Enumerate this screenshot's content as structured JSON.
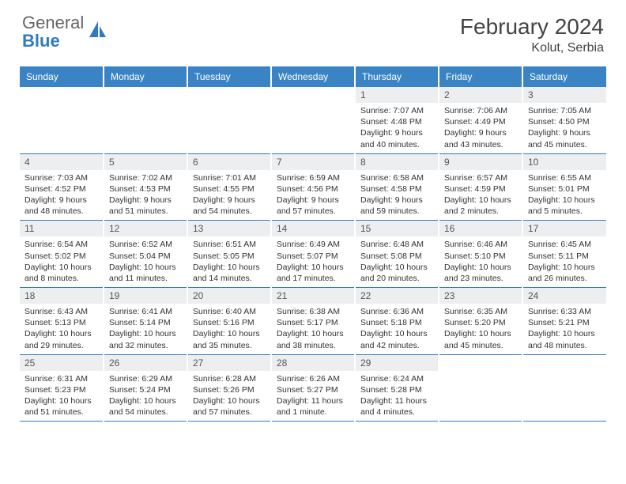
{
  "logo": {
    "text1": "General",
    "text2": "Blue",
    "icon_color": "#2f7bbf"
  },
  "title": "February 2024",
  "location": "Kolut, Serbia",
  "header_bg": "#3a84c5",
  "daynum_bg": "#eceef0",
  "border_color": "#2f7bbf",
  "weekdays": [
    "Sunday",
    "Monday",
    "Tuesday",
    "Wednesday",
    "Thursday",
    "Friday",
    "Saturday"
  ],
  "weeks": [
    [
      null,
      null,
      null,
      null,
      {
        "n": "1",
        "sunrise": "7:07 AM",
        "sunset": "4:48 PM",
        "dl1": "Daylight: 9 hours",
        "dl2": "and 40 minutes."
      },
      {
        "n": "2",
        "sunrise": "7:06 AM",
        "sunset": "4:49 PM",
        "dl1": "Daylight: 9 hours",
        "dl2": "and 43 minutes."
      },
      {
        "n": "3",
        "sunrise": "7:05 AM",
        "sunset": "4:50 PM",
        "dl1": "Daylight: 9 hours",
        "dl2": "and 45 minutes."
      }
    ],
    [
      {
        "n": "4",
        "sunrise": "7:03 AM",
        "sunset": "4:52 PM",
        "dl1": "Daylight: 9 hours",
        "dl2": "and 48 minutes."
      },
      {
        "n": "5",
        "sunrise": "7:02 AM",
        "sunset": "4:53 PM",
        "dl1": "Daylight: 9 hours",
        "dl2": "and 51 minutes."
      },
      {
        "n": "6",
        "sunrise": "7:01 AM",
        "sunset": "4:55 PM",
        "dl1": "Daylight: 9 hours",
        "dl2": "and 54 minutes."
      },
      {
        "n": "7",
        "sunrise": "6:59 AM",
        "sunset": "4:56 PM",
        "dl1": "Daylight: 9 hours",
        "dl2": "and 57 minutes."
      },
      {
        "n": "8",
        "sunrise": "6:58 AM",
        "sunset": "4:58 PM",
        "dl1": "Daylight: 9 hours",
        "dl2": "and 59 minutes."
      },
      {
        "n": "9",
        "sunrise": "6:57 AM",
        "sunset": "4:59 PM",
        "dl1": "Daylight: 10 hours",
        "dl2": "and 2 minutes."
      },
      {
        "n": "10",
        "sunrise": "6:55 AM",
        "sunset": "5:01 PM",
        "dl1": "Daylight: 10 hours",
        "dl2": "and 5 minutes."
      }
    ],
    [
      {
        "n": "11",
        "sunrise": "6:54 AM",
        "sunset": "5:02 PM",
        "dl1": "Daylight: 10 hours",
        "dl2": "and 8 minutes."
      },
      {
        "n": "12",
        "sunrise": "6:52 AM",
        "sunset": "5:04 PM",
        "dl1": "Daylight: 10 hours",
        "dl2": "and 11 minutes."
      },
      {
        "n": "13",
        "sunrise": "6:51 AM",
        "sunset": "5:05 PM",
        "dl1": "Daylight: 10 hours",
        "dl2": "and 14 minutes."
      },
      {
        "n": "14",
        "sunrise": "6:49 AM",
        "sunset": "5:07 PM",
        "dl1": "Daylight: 10 hours",
        "dl2": "and 17 minutes."
      },
      {
        "n": "15",
        "sunrise": "6:48 AM",
        "sunset": "5:08 PM",
        "dl1": "Daylight: 10 hours",
        "dl2": "and 20 minutes."
      },
      {
        "n": "16",
        "sunrise": "6:46 AM",
        "sunset": "5:10 PM",
        "dl1": "Daylight: 10 hours",
        "dl2": "and 23 minutes."
      },
      {
        "n": "17",
        "sunrise": "6:45 AM",
        "sunset": "5:11 PM",
        "dl1": "Daylight: 10 hours",
        "dl2": "and 26 minutes."
      }
    ],
    [
      {
        "n": "18",
        "sunrise": "6:43 AM",
        "sunset": "5:13 PM",
        "dl1": "Daylight: 10 hours",
        "dl2": "and 29 minutes."
      },
      {
        "n": "19",
        "sunrise": "6:41 AM",
        "sunset": "5:14 PM",
        "dl1": "Daylight: 10 hours",
        "dl2": "and 32 minutes."
      },
      {
        "n": "20",
        "sunrise": "6:40 AM",
        "sunset": "5:16 PM",
        "dl1": "Daylight: 10 hours",
        "dl2": "and 35 minutes."
      },
      {
        "n": "21",
        "sunrise": "6:38 AM",
        "sunset": "5:17 PM",
        "dl1": "Daylight: 10 hours",
        "dl2": "and 38 minutes."
      },
      {
        "n": "22",
        "sunrise": "6:36 AM",
        "sunset": "5:18 PM",
        "dl1": "Daylight: 10 hours",
        "dl2": "and 42 minutes."
      },
      {
        "n": "23",
        "sunrise": "6:35 AM",
        "sunset": "5:20 PM",
        "dl1": "Daylight: 10 hours",
        "dl2": "and 45 minutes."
      },
      {
        "n": "24",
        "sunrise": "6:33 AM",
        "sunset": "5:21 PM",
        "dl1": "Daylight: 10 hours",
        "dl2": "and 48 minutes."
      }
    ],
    [
      {
        "n": "25",
        "sunrise": "6:31 AM",
        "sunset": "5:23 PM",
        "dl1": "Daylight: 10 hours",
        "dl2": "and 51 minutes."
      },
      {
        "n": "26",
        "sunrise": "6:29 AM",
        "sunset": "5:24 PM",
        "dl1": "Daylight: 10 hours",
        "dl2": "and 54 minutes."
      },
      {
        "n": "27",
        "sunrise": "6:28 AM",
        "sunset": "5:26 PM",
        "dl1": "Daylight: 10 hours",
        "dl2": "and 57 minutes."
      },
      {
        "n": "28",
        "sunrise": "6:26 AM",
        "sunset": "5:27 PM",
        "dl1": "Daylight: 11 hours",
        "dl2": "and 1 minute."
      },
      {
        "n": "29",
        "sunrise": "6:24 AM",
        "sunset": "5:28 PM",
        "dl1": "Daylight: 11 hours",
        "dl2": "and 4 minutes."
      },
      null,
      null
    ]
  ]
}
